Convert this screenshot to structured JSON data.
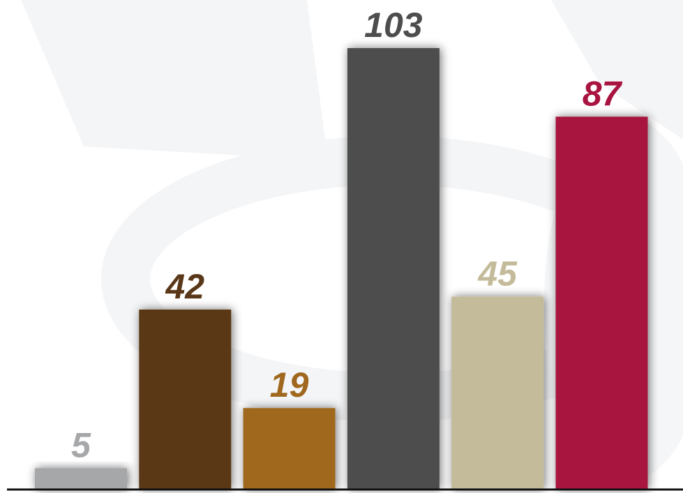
{
  "chart_data": {
    "type": "bar",
    "values": [
      5,
      42,
      19,
      103,
      45,
      87
    ],
    "colors": [
      "#a6a7a9",
      "#5a3718",
      "#a0681e",
      "#4d4d4d",
      "#c3bb9a",
      "#a8133f"
    ],
    "show_value_labels": true,
    "ylim": [
      0,
      103
    ],
    "grid": false,
    "legend": "none",
    "background": "watermark pattern"
  }
}
